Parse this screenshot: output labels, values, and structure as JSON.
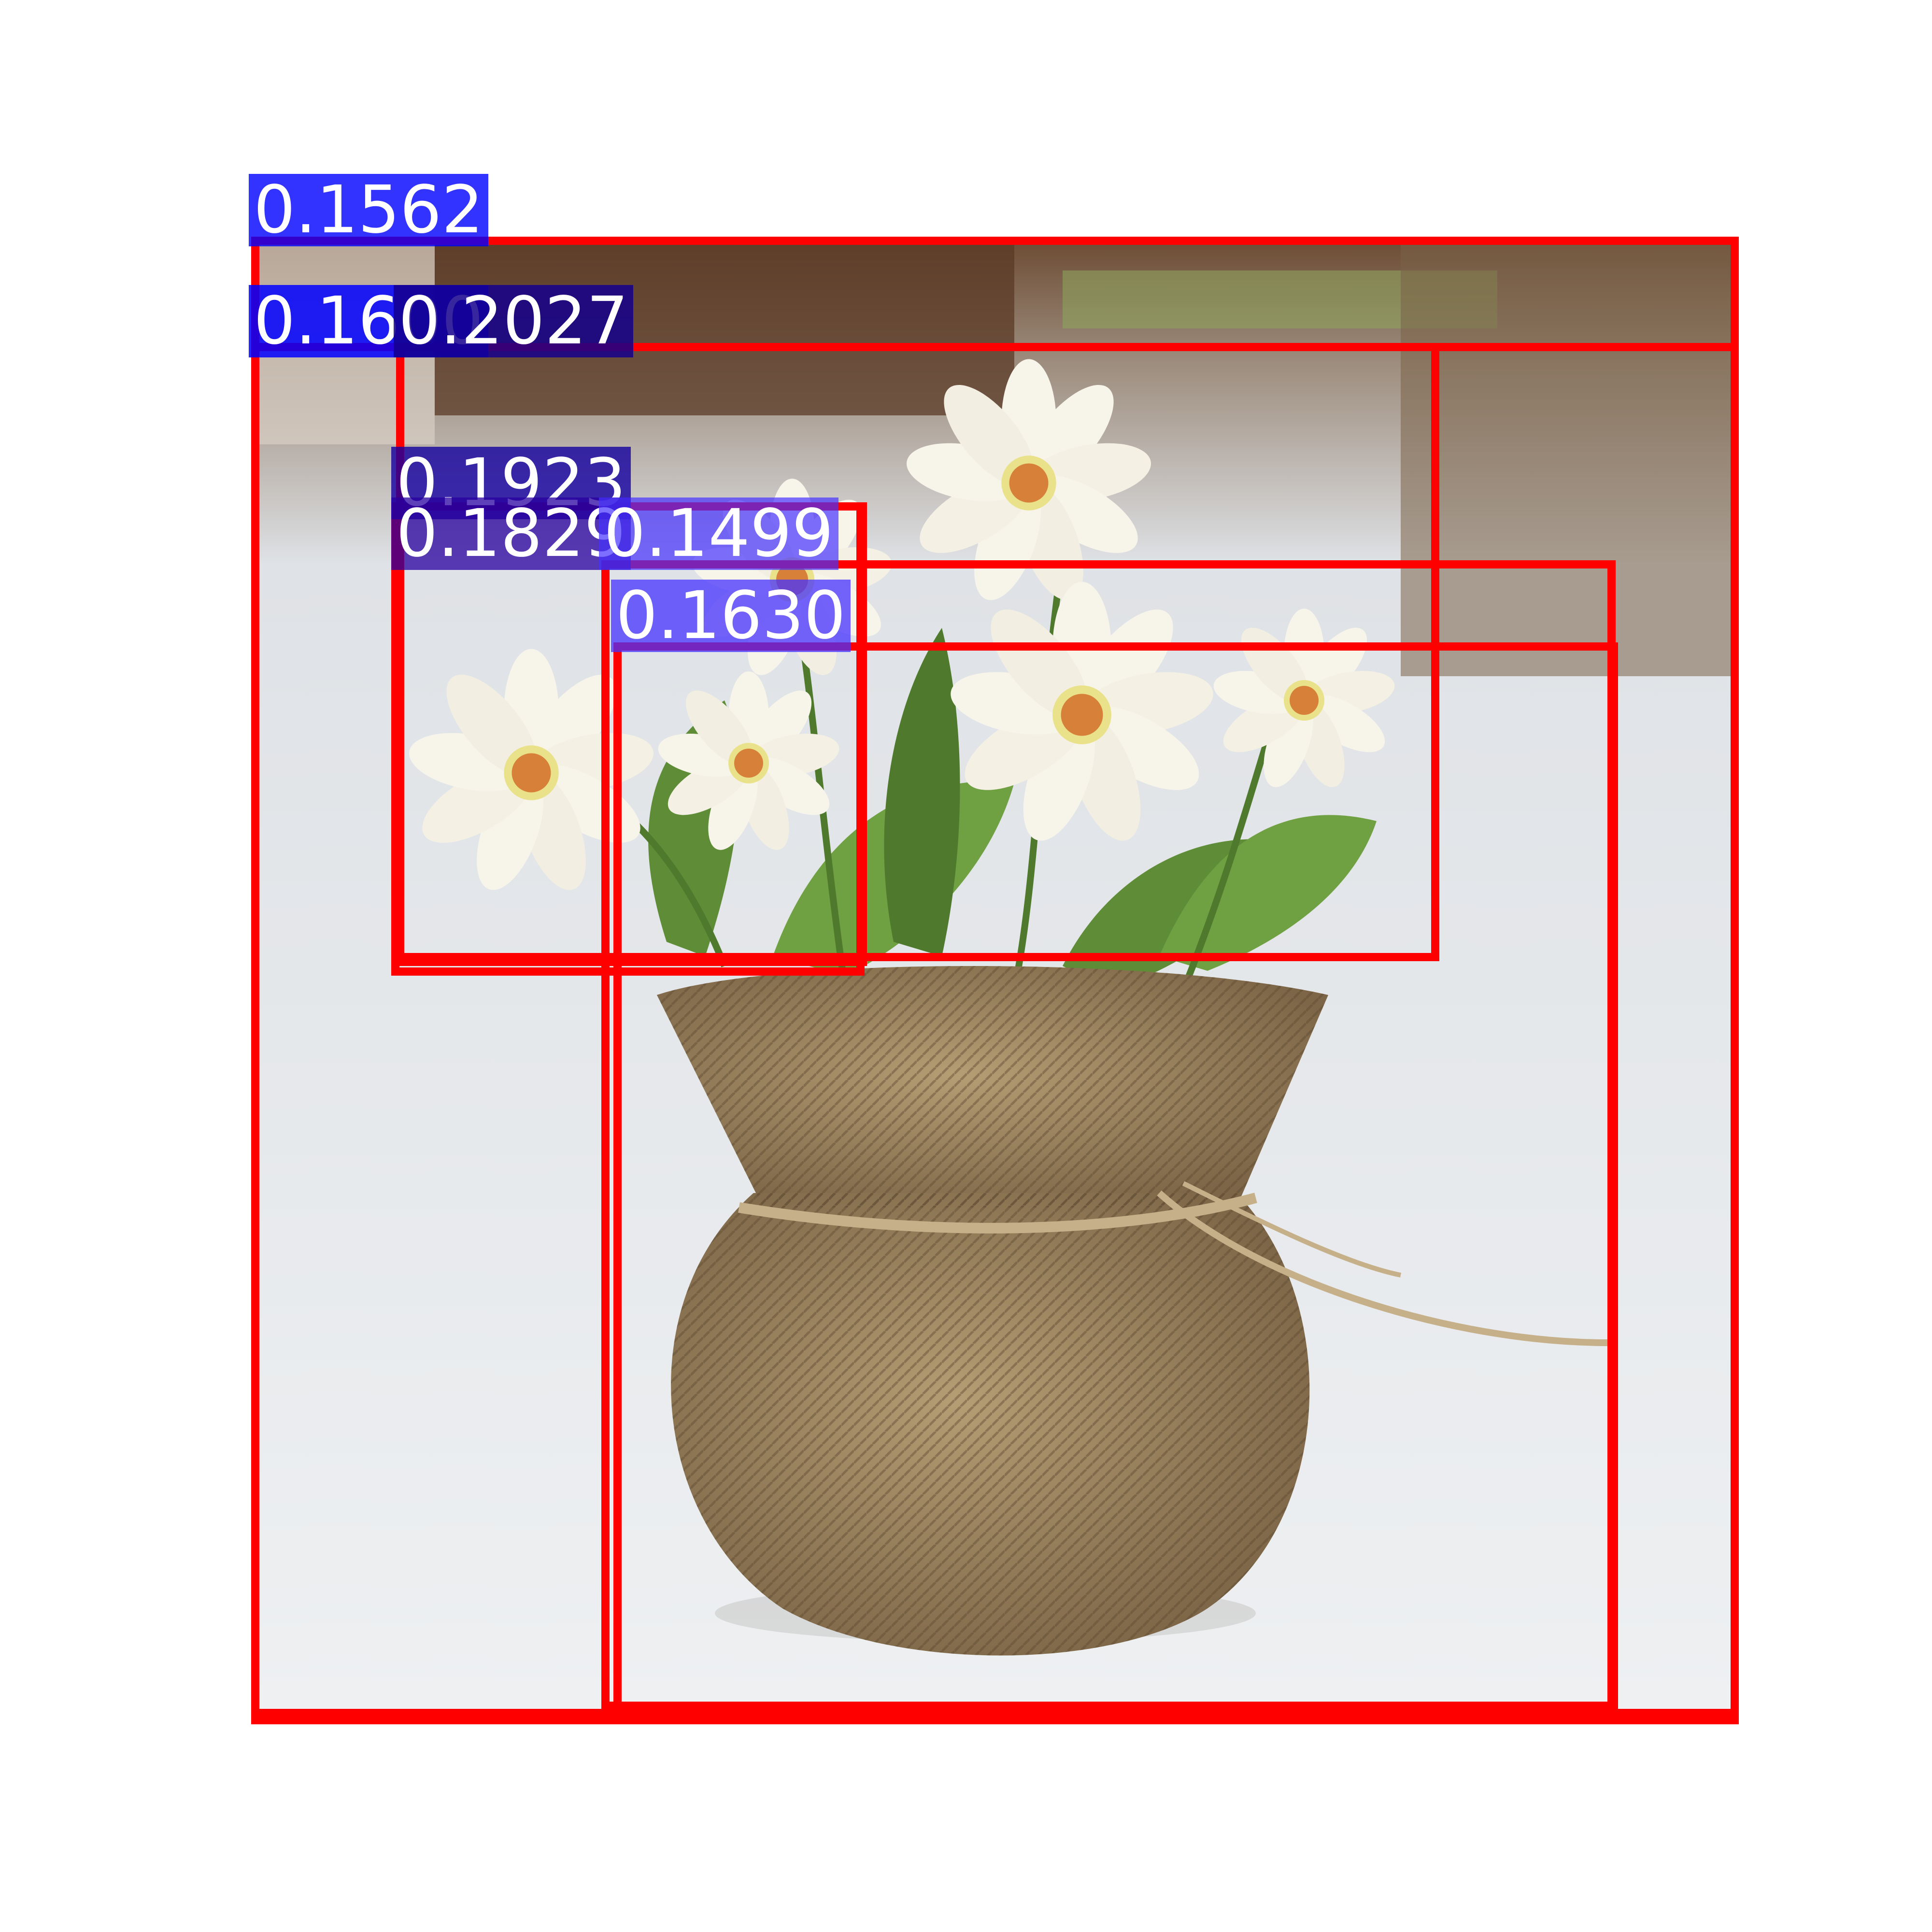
{
  "image": {
    "subject": "white daisy flowers in a burlap-wrapped pot",
    "colors": {
      "box_stroke": "#ff0000",
      "label_bg": "#0000ff",
      "label_text": "#ffffff",
      "photo_background": "#e8eaec",
      "burlap": "#a08a64",
      "petal": "#f7f4ea",
      "leaf": "#5e8c37",
      "flower_center": "#d6803a"
    }
  },
  "detections": [
    {
      "score": "0.1562"
    },
    {
      "score": "0.1600"
    },
    {
      "score": "0.2027"
    },
    {
      "score": "0.1923"
    },
    {
      "score": "0.1829"
    },
    {
      "score": "0.1499"
    },
    {
      "score": "0.1630"
    }
  ]
}
